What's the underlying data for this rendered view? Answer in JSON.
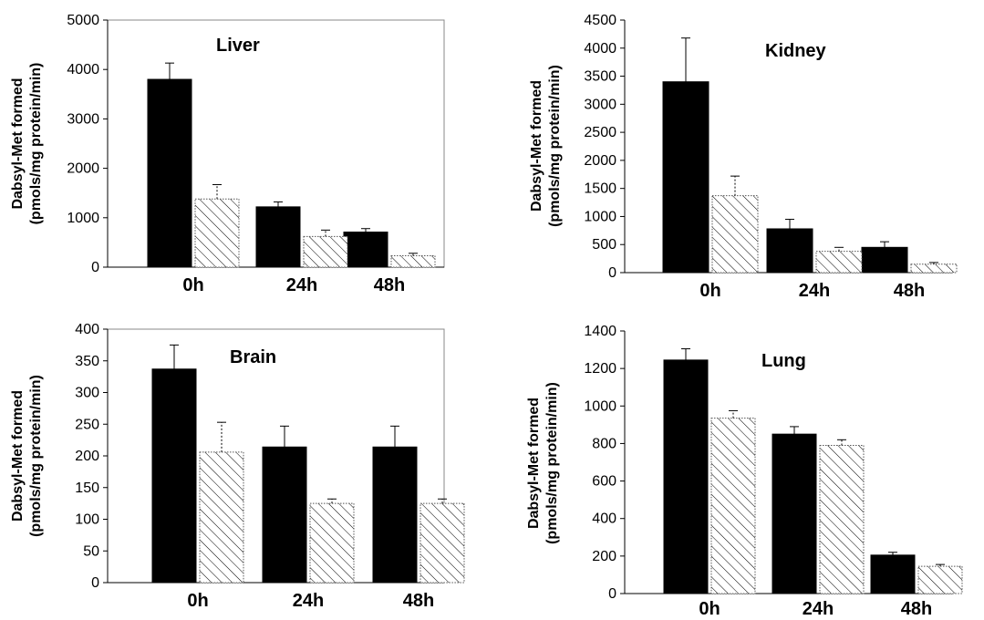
{
  "chart_data": [
    {
      "type": "bar",
      "title": "Liver",
      "ylabel": [
        "Dabsyl-Met formed",
        "(pmols/mg protein/min)"
      ],
      "categories": [
        "0h",
        "24h",
        "48h"
      ],
      "series": [
        {
          "fill": "solid",
          "values": [
            3800,
            1220,
            710
          ],
          "errors": [
            330,
            100,
            70
          ]
        },
        {
          "fill": "hatched",
          "values": [
            1380,
            620,
            230
          ],
          "errors": [
            290,
            130,
            50
          ]
        }
      ],
      "ylim": [
        0,
        5000
      ],
      "yticks": [
        0,
        1000,
        2000,
        3000,
        4000,
        5000
      ],
      "frame": true,
      "grid": false
    },
    {
      "type": "bar",
      "title": "Kidney",
      "ylabel": [
        "Dabsyl-Met formed",
        "(pmols/mg protein/min)"
      ],
      "categories": [
        "0h",
        "24h",
        "48h"
      ],
      "series": [
        {
          "fill": "solid",
          "values": [
            3400,
            780,
            450
          ],
          "errors": [
            780,
            170,
            100
          ]
        },
        {
          "fill": "hatched",
          "values": [
            1370,
            380,
            150
          ],
          "errors": [
            350,
            70,
            30
          ]
        }
      ],
      "ylim": [
        0,
        4500
      ],
      "yticks": [
        0,
        500,
        1000,
        1500,
        2000,
        2500,
        3000,
        3500,
        4000,
        4500
      ],
      "frame": false,
      "grid": false
    },
    {
      "type": "bar",
      "title": "Brain",
      "ylabel": [
        "Dabsyl-Met formed",
        "(pmols/mg protein/min)"
      ],
      "categories": [
        "0h",
        "24h",
        "48h"
      ],
      "series": [
        {
          "fill": "solid",
          "values": [
            337,
            214,
            214
          ],
          "errors": [
            38,
            33,
            33
          ]
        },
        {
          "fill": "hatched",
          "values": [
            206,
            125,
            125
          ],
          "errors": [
            47,
            7,
            7
          ]
        }
      ],
      "ylim": [
        0,
        400
      ],
      "yticks": [
        0,
        50,
        100,
        150,
        200,
        250,
        300,
        350,
        400
      ],
      "frame": true,
      "grid": false
    },
    {
      "type": "bar",
      "title": "Lung",
      "ylabel": [
        "Dabsyl-Met formed",
        "(pmols/mg protein/min)"
      ],
      "categories": [
        "0h",
        "24h",
        "48h"
      ],
      "series": [
        {
          "fill": "solid",
          "values": [
            1245,
            850,
            205
          ],
          "errors": [
            60,
            40,
            15
          ]
        },
        {
          "fill": "hatched",
          "values": [
            935,
            790,
            145
          ],
          "errors": [
            40,
            30,
            10
          ]
        }
      ],
      "ylim": [
        0,
        1400
      ],
      "yticks": [
        0,
        200,
        400,
        600,
        800,
        1000,
        1200,
        1400
      ],
      "frame": false,
      "grid": false
    }
  ]
}
